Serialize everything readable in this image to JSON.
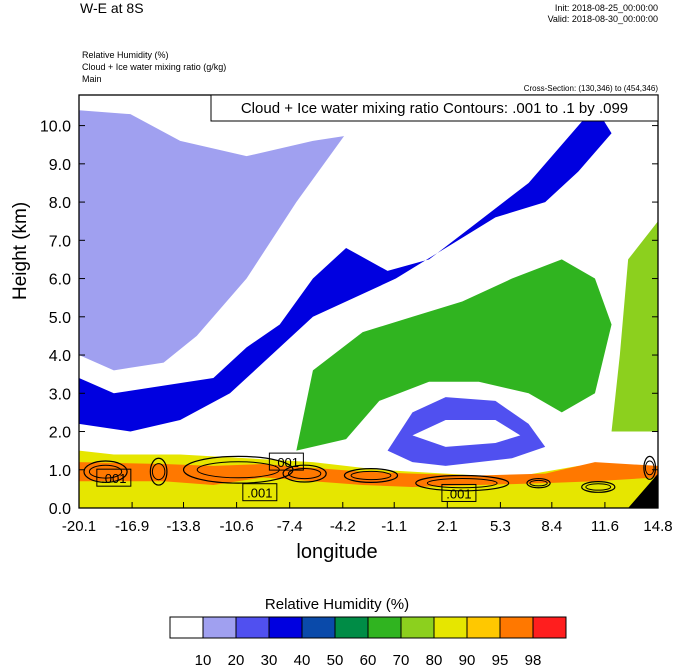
{
  "header": {
    "title": "W-E at 8S",
    "init": "Init: 2018-08-25_00:00:00",
    "valid": "Valid: 2018-08-30_00:00:00",
    "fields": [
      "Relative Humidity   (%)",
      "Cloud + Ice water mixing ratio   (g/kg)",
      "Main"
    ],
    "cross_section": "Cross-Section: (130,346) to (454,346)"
  },
  "chart_data": {
    "type": "contour",
    "xlabel": "longitude",
    "ylabel": "Height (km)",
    "x_ticks": [
      "-20.1",
      "-16.9",
      "-13.8",
      "-10.6",
      "-7.4",
      "-4.2",
      "-1.1",
      "2.1",
      "5.3",
      "8.4",
      "11.6",
      "14.8"
    ],
    "y_ticks": [
      "0.0",
      "1.0",
      "2.0",
      "3.0",
      "4.0",
      "5.0",
      "6.0",
      "7.0",
      "8.0",
      "9.0",
      "10.0"
    ],
    "xlim": [
      -20.1,
      14.8
    ],
    "ylim": [
      0.0,
      10.8
    ],
    "contour_label": "Cloud + Ice water mixing ratio Contours: .001 to .1 by .099",
    "contour_value_labels": [
      ".001",
      ".001",
      ".001",
      ".001"
    ],
    "colorbar": {
      "title": "Relative Humidity  (%)",
      "levels": [
        "10",
        "20",
        "30",
        "40",
        "50",
        "60",
        "70",
        "80",
        "90",
        "95",
        "98"
      ],
      "colors": [
        "#ffffff",
        "#a0a0f0",
        "#5050f0",
        "#0000e0",
        "#0a4aaa",
        "#008c46",
        "#30b420",
        "#8cd01e",
        "#e6e600",
        "#ffc800",
        "#ff7800",
        "#ff1e1e"
      ]
    },
    "rh_shading": [
      {
        "level_index": 1,
        "polygon": [
          [
            -20.1,
            4.0
          ],
          [
            -18,
            3.6
          ],
          [
            -15,
            3.8
          ],
          [
            -13,
            4.5
          ],
          [
            -10,
            6.0
          ],
          [
            -7,
            8.0
          ],
          [
            -4,
            9.8
          ],
          [
            -2,
            10.5
          ],
          [
            -4.5,
            10.8
          ],
          [
            -20.1,
            10.8
          ]
        ]
      },
      {
        "level_index": 0,
        "polygon": [
          [
            -20.1,
            10.4
          ],
          [
            -17,
            10.3
          ],
          [
            -14,
            9.6
          ],
          [
            -10,
            9.2
          ],
          [
            -6,
            9.6
          ],
          [
            -3,
            9.8
          ],
          [
            -1,
            9.6
          ],
          [
            2,
            10.4
          ],
          [
            4,
            10.8
          ],
          [
            -20.1,
            10.8
          ]
        ]
      },
      {
        "level_index": 0,
        "polygon": [
          [
            -1.5,
            6.2
          ],
          [
            1,
            6.5
          ],
          [
            4,
            7.5
          ],
          [
            7,
            8.5
          ],
          [
            9,
            9.5
          ],
          [
            9.5,
            10.5
          ],
          [
            7,
            10.6
          ],
          [
            3,
            10.2
          ],
          [
            0,
            9.0
          ],
          [
            -1.5,
            7.5
          ]
        ]
      },
      {
        "level_index": 3,
        "polygon": [
          [
            -20.1,
            2.2
          ],
          [
            -17,
            2.0
          ],
          [
            -14,
            2.3
          ],
          [
            -11,
            3.0
          ],
          [
            -8,
            4.2
          ],
          [
            -6,
            5.0
          ],
          [
            -3,
            5.6
          ],
          [
            -1,
            6.0
          ],
          [
            2,
            6.8
          ],
          [
            5,
            7.6
          ],
          [
            8,
            8.0
          ],
          [
            10,
            8.8
          ],
          [
            12,
            9.8
          ],
          [
            11,
            10.5
          ],
          [
            9,
            9.5
          ],
          [
            7,
            8.5
          ],
          [
            4,
            7.5
          ],
          [
            1,
            6.5
          ],
          [
            -1.5,
            6.2
          ],
          [
            -4,
            6.8
          ],
          [
            -6,
            6.0
          ],
          [
            -8,
            4.8
          ],
          [
            -10,
            4.2
          ],
          [
            -12,
            3.4
          ],
          [
            -15,
            3.2
          ],
          [
            -18,
            3.0
          ],
          [
            -20.1,
            3.4
          ]
        ]
      },
      {
        "level_index": 6,
        "polygon": [
          [
            -7,
            1.5
          ],
          [
            -4,
            1.8
          ],
          [
            -2,
            2.8
          ],
          [
            1,
            3.3
          ],
          [
            4,
            3.3
          ],
          [
            7,
            3.0
          ],
          [
            9,
            2.5
          ],
          [
            11,
            3.0
          ],
          [
            12,
            4.8
          ],
          [
            11,
            6.0
          ],
          [
            9,
            6.5
          ],
          [
            6,
            6.0
          ],
          [
            3,
            5.4
          ],
          [
            0,
            5.0
          ],
          [
            -3,
            4.6
          ],
          [
            -6,
            3.6
          ]
        ]
      },
      {
        "level_index": 2,
        "polygon": [
          [
            -1.5,
            1.5
          ],
          [
            0,
            2.5
          ],
          [
            2,
            2.9
          ],
          [
            5,
            2.8
          ],
          [
            7,
            2.2
          ],
          [
            8,
            1.6
          ],
          [
            6,
            1.3
          ],
          [
            2,
            1.1
          ],
          [
            0,
            1.2
          ]
        ]
      },
      {
        "level_index": 0,
        "polygon": [
          [
            0,
            1.9
          ],
          [
            2,
            2.3
          ],
          [
            5,
            2.3
          ],
          [
            6.5,
            1.9
          ],
          [
            5,
            1.7
          ],
          [
            2,
            1.6
          ]
        ]
      },
      {
        "level_index": 7,
        "polygon": [
          [
            12,
            2.0
          ],
          [
            14.8,
            2.0
          ],
          [
            14.8,
            7.5
          ],
          [
            13,
            6.5
          ],
          [
            12.5,
            4.0
          ]
        ]
      },
      {
        "level_index": 8,
        "polygon": [
          [
            -20.1,
            0.0
          ],
          [
            14.8,
            0.0
          ],
          [
            14.8,
            0.9
          ],
          [
            10,
            1.1
          ],
          [
            6,
            0.8
          ],
          [
            2,
            0.9
          ],
          [
            -2,
            1.0
          ],
          [
            -6,
            1.2
          ],
          [
            -10,
            1.3
          ],
          [
            -14,
            1.4
          ],
          [
            -18,
            1.4
          ],
          [
            -20.1,
            1.5
          ]
        ]
      },
      {
        "level_index": 10,
        "polygon": [
          [
            -20.1,
            0.7
          ],
          [
            -15,
            0.7
          ],
          [
            -12,
            0.6
          ],
          [
            -9,
            0.8
          ],
          [
            -6,
            0.7
          ],
          [
            -3,
            0.6
          ],
          [
            0,
            0.55
          ],
          [
            4,
            0.6
          ],
          [
            8,
            0.65
          ],
          [
            11,
            0.7
          ],
          [
            14.8,
            0.8
          ],
          [
            14.8,
            1.1
          ],
          [
            11,
            1.2
          ],
          [
            8,
            0.9
          ],
          [
            4,
            0.85
          ],
          [
            0,
            0.9
          ],
          [
            -3,
            0.95
          ],
          [
            -6,
            1.05
          ],
          [
            -9,
            1.15
          ],
          [
            -12,
            1.1
          ],
          [
            -15,
            1.15
          ],
          [
            -20.1,
            1.2
          ]
        ]
      }
    ],
    "contours": [
      {
        "center": [
          -18.5,
          0.95
        ],
        "rx": 1.3,
        "ry": 0.28
      },
      {
        "center": [
          -15.3,
          0.95
        ],
        "rx": 0.5,
        "ry": 0.35
      },
      {
        "center": [
          -10.5,
          1.0
        ],
        "rx": 3.3,
        "ry": 0.35
      },
      {
        "center": [
          -6.5,
          0.9
        ],
        "rx": 1.3,
        "ry": 0.22
      },
      {
        "center": [
          -2.5,
          0.85
        ],
        "rx": 1.6,
        "ry": 0.18
      },
      {
        "center": [
          3.0,
          0.65
        ],
        "rx": 2.8,
        "ry": 0.2
      },
      {
        "center": [
          7.6,
          0.65
        ],
        "rx": 0.7,
        "ry": 0.12
      },
      {
        "center": [
          11.2,
          0.55
        ],
        "rx": 1.0,
        "ry": 0.14
      },
      {
        "center": [
          14.3,
          1.05
        ],
        "rx": 0.35,
        "ry": 0.3
      }
    ],
    "terrain": [
      [
        13.0,
        0.0
      ],
      [
        14.8,
        0.0
      ],
      [
        14.8,
        0.9
      ]
    ]
  }
}
